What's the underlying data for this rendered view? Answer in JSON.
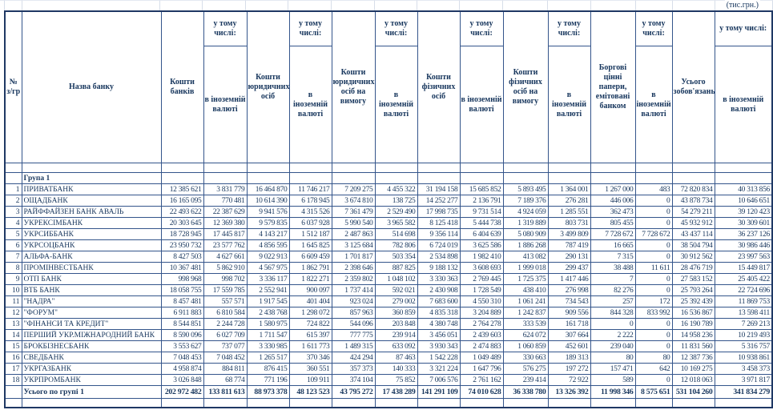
{
  "units_note": "(тис.грн.)",
  "table": {
    "header": {
      "num": "№ з/гр",
      "bank": "Назва банку",
      "incl_label": "у тому числі:",
      "fx_label": "в іноземній валюті",
      "groups": [
        "Кошти банків",
        "Кошти юридичних осіб",
        "Кошти юридичних осіб на вимогу",
        "Кошти фізичних осіб",
        "Кошти фізичних осіб на вимогу",
        "Боргові цінні папери, емітовані банком",
        "Усього зобов'язань"
      ]
    },
    "group_label": "Група 1",
    "rows": [
      {
        "num": "1",
        "name": "ПРИВАТБАНК",
        "values": [
          "12 385 621",
          "3 831 779",
          "16 464 870",
          "11 746 217",
          "7 209 275",
          "4 455 322",
          "31 194 158",
          "15 685 852",
          "5 893 495",
          "1 364 001",
          "1 267 000",
          "483",
          "72 820 834",
          "40 313 856"
        ]
      },
      {
        "num": "2",
        "name": "ОЩАДБАНК",
        "values": [
          "16 165 095",
          "770 481",
          "10 614 390",
          "6 178 945",
          "3 674 810",
          "138 725",
          "14 252 277",
          "2 136 791",
          "7 189 376",
          "276 281",
          "446 006",
          "0",
          "43 878 734",
          "10 646 651"
        ]
      },
      {
        "num": "3",
        "name": "РАЙФФАЙЗЕН БАНК АВАЛЬ",
        "values": [
          "22 493 622",
          "22 387 629",
          "9 941 576",
          "4 315 526",
          "7 361 479",
          "2 529 490",
          "17 998 735",
          "9 731 514",
          "4 924 059",
          "1 285 551",
          "362 473",
          "0",
          "54 279 211",
          "39 120 423"
        ]
      },
      {
        "num": "4",
        "name": "УКРЕКСІМБАНК",
        "values": [
          "20 303 645",
          "12 369 380",
          "9 579 835",
          "6 037 928",
          "5 990 540",
          "3 965 582",
          "8 125 418",
          "5 444 738",
          "1 319 889",
          "803 731",
          "805 455",
          "0",
          "45 932 912",
          "30 309 601"
        ]
      },
      {
        "num": "5",
        "name": "УКРСИББАНК",
        "values": [
          "18 728 945",
          "17 445 817",
          "4 143 217",
          "1 512 187",
          "2 487 863",
          "514 698",
          "9 356 114",
          "6 404 639",
          "5 080 909",
          "3 499 809",
          "7 728 672",
          "7 728 672",
          "43 437 114",
          "36 237 126"
        ]
      },
      {
        "num": "6",
        "name": "УКРСОЦБАНК",
        "values": [
          "23 950 732",
          "23 577 762",
          "4 856 595",
          "1 645 825",
          "3 125 684",
          "782 806",
          "6 724 019",
          "3 625 586",
          "1 886 268",
          "787 419",
          "16 665",
          "0",
          "38 504 794",
          "30 986 446"
        ]
      },
      {
        "num": "7",
        "name": "АЛЬФА-БАНК",
        "values": [
          "8 427 503",
          "4 627 661",
          "9 022 913",
          "6 609 459",
          "1 701 817",
          "503 354",
          "2 534 898",
          "1 982 410",
          "413 082",
          "290 131",
          "7 315",
          "0",
          "30 912 562",
          "23 997 563"
        ]
      },
      {
        "num": "8",
        "name": "ПРОМІНВЕСТБАНК",
        "values": [
          "10 367 481",
          "5 862 910",
          "4 567 975",
          "1 862 791",
          "2 398 646",
          "887 825",
          "9 188 132",
          "3 608 693",
          "1 999 018",
          "299 437",
          "38 488",
          "11 611",
          "28 476 719",
          "15 449 817"
        ]
      },
      {
        "num": "9",
        "name": "ОТП БАНК",
        "values": [
          "998 968",
          "998 702",
          "3 336 117",
          "1 822 271",
          "2 359 802",
          "1 048 102",
          "3 330 363",
          "2 769 445",
          "1 725 375",
          "1 417 446",
          "7",
          "0",
          "27 583 152",
          "25 405 422"
        ]
      },
      {
        "num": "10",
        "name": "ВТБ БАНК",
        "values": [
          "18 058 755",
          "17 559 785",
          "2 552 941",
          "900 097",
          "1 737 414",
          "592 021",
          "2 430 908",
          "1 728 549",
          "438 410",
          "276 998",
          "82 276",
          "0",
          "25 793 264",
          "22 724 696"
        ]
      },
      {
        "num": "11",
        "name": "\"НАДРА\"",
        "values": [
          "8 457 481",
          "557 571",
          "1 917 545",
          "401 404",
          "923 024",
          "279 002",
          "7 683 600",
          "4 550 310",
          "1 061 241",
          "734 543",
          "257",
          "172",
          "25 392 439",
          "11 869 753"
        ]
      },
      {
        "num": "12",
        "name": "\"ФОРУМ\"",
        "values": [
          "6 911 883",
          "6 810 584",
          "2 438 768",
          "1 298 072",
          "857 963",
          "360 859",
          "4 835 318",
          "3 204 889",
          "1 242 837",
          "909 556",
          "844 328",
          "833 992",
          "16 536 867",
          "13 598 411"
        ]
      },
      {
        "num": "13",
        "name": "\"ФІНАНСИ ТА КРЕДИТ\"",
        "values": [
          "8 544 851",
          "2 244 728",
          "1 580 975",
          "724 822",
          "544 096",
          "203 848",
          "4 380 748",
          "2 764 278",
          "333 539",
          "161 718",
          "0",
          "0",
          "16 190 789",
          "7 269 213"
        ]
      },
      {
        "num": "14",
        "name": "ПЕРШИЙ УКР.МІЖНАРОДНИЙ БАНК",
        "values": [
          "8 590 096",
          "6 027 709",
          "1 711 547",
          "615 397",
          "777 775",
          "239 914",
          "3 456 051",
          "2 439 603",
          "624 072",
          "307 664",
          "2 222",
          "0",
          "14 958 236",
          "10 219 493"
        ]
      },
      {
        "num": "15",
        "name": "БРОКБІЗНЕСБАНК",
        "values": [
          "3 553 627",
          "737 077",
          "3 330 985",
          "1 611 773",
          "1 489 315",
          "633 092",
          "3 930 343",
          "2 474 883",
          "1 060 859",
          "452 601",
          "239 040",
          "0",
          "11 831 560",
          "5 316 757"
        ]
      },
      {
        "num": "16",
        "name": "СВЕДБАНК",
        "values": [
          "7 048 453",
          "7 048 452",
          "1 265 517",
          "370 346",
          "424 294",
          "87 463",
          "1 542 228",
          "1 049 489",
          "330 663",
          "189 313",
          "80",
          "80",
          "12 387 736",
          "10 938 861"
        ]
      },
      {
        "num": "17",
        "name": "УКРГАЗБАНК",
        "values": [
          "4 958 874",
          "884 811",
          "876 415",
          "360 551",
          "357 373",
          "140 333",
          "3 321 224",
          "1 647 796",
          "576 275",
          "197 272",
          "157 471",
          "642",
          "10 169 275",
          "3 458 373"
        ]
      },
      {
        "num": "18",
        "name": "УКРПРОМБАНК",
        "values": [
          "3 026 848",
          "68 774",
          "771 196",
          "109 911",
          "374 104",
          "75 852",
          "7 006 576",
          "2 761 162",
          "239 414",
          "72 922",
          "589",
          "0",
          "12 018 063",
          "3 971 817"
        ]
      }
    ],
    "total": {
      "label": "Усього по групі 1",
      "values": [
        "202 972 482",
        "133 811 613",
        "88 973 378",
        "48 123 523",
        "43 795 272",
        "17 438 289",
        "141 291 109",
        "74 010 628",
        "36 338 780",
        "13 326 392",
        "11 998 346",
        "8 575 651",
        "531 104 260",
        "341 834 279"
      ]
    }
  },
  "colors": {
    "text": "#17365d",
    "border_inner": "#34558b",
    "border_outer": "#1f3864",
    "strip_line": "#d7dee9"
  }
}
